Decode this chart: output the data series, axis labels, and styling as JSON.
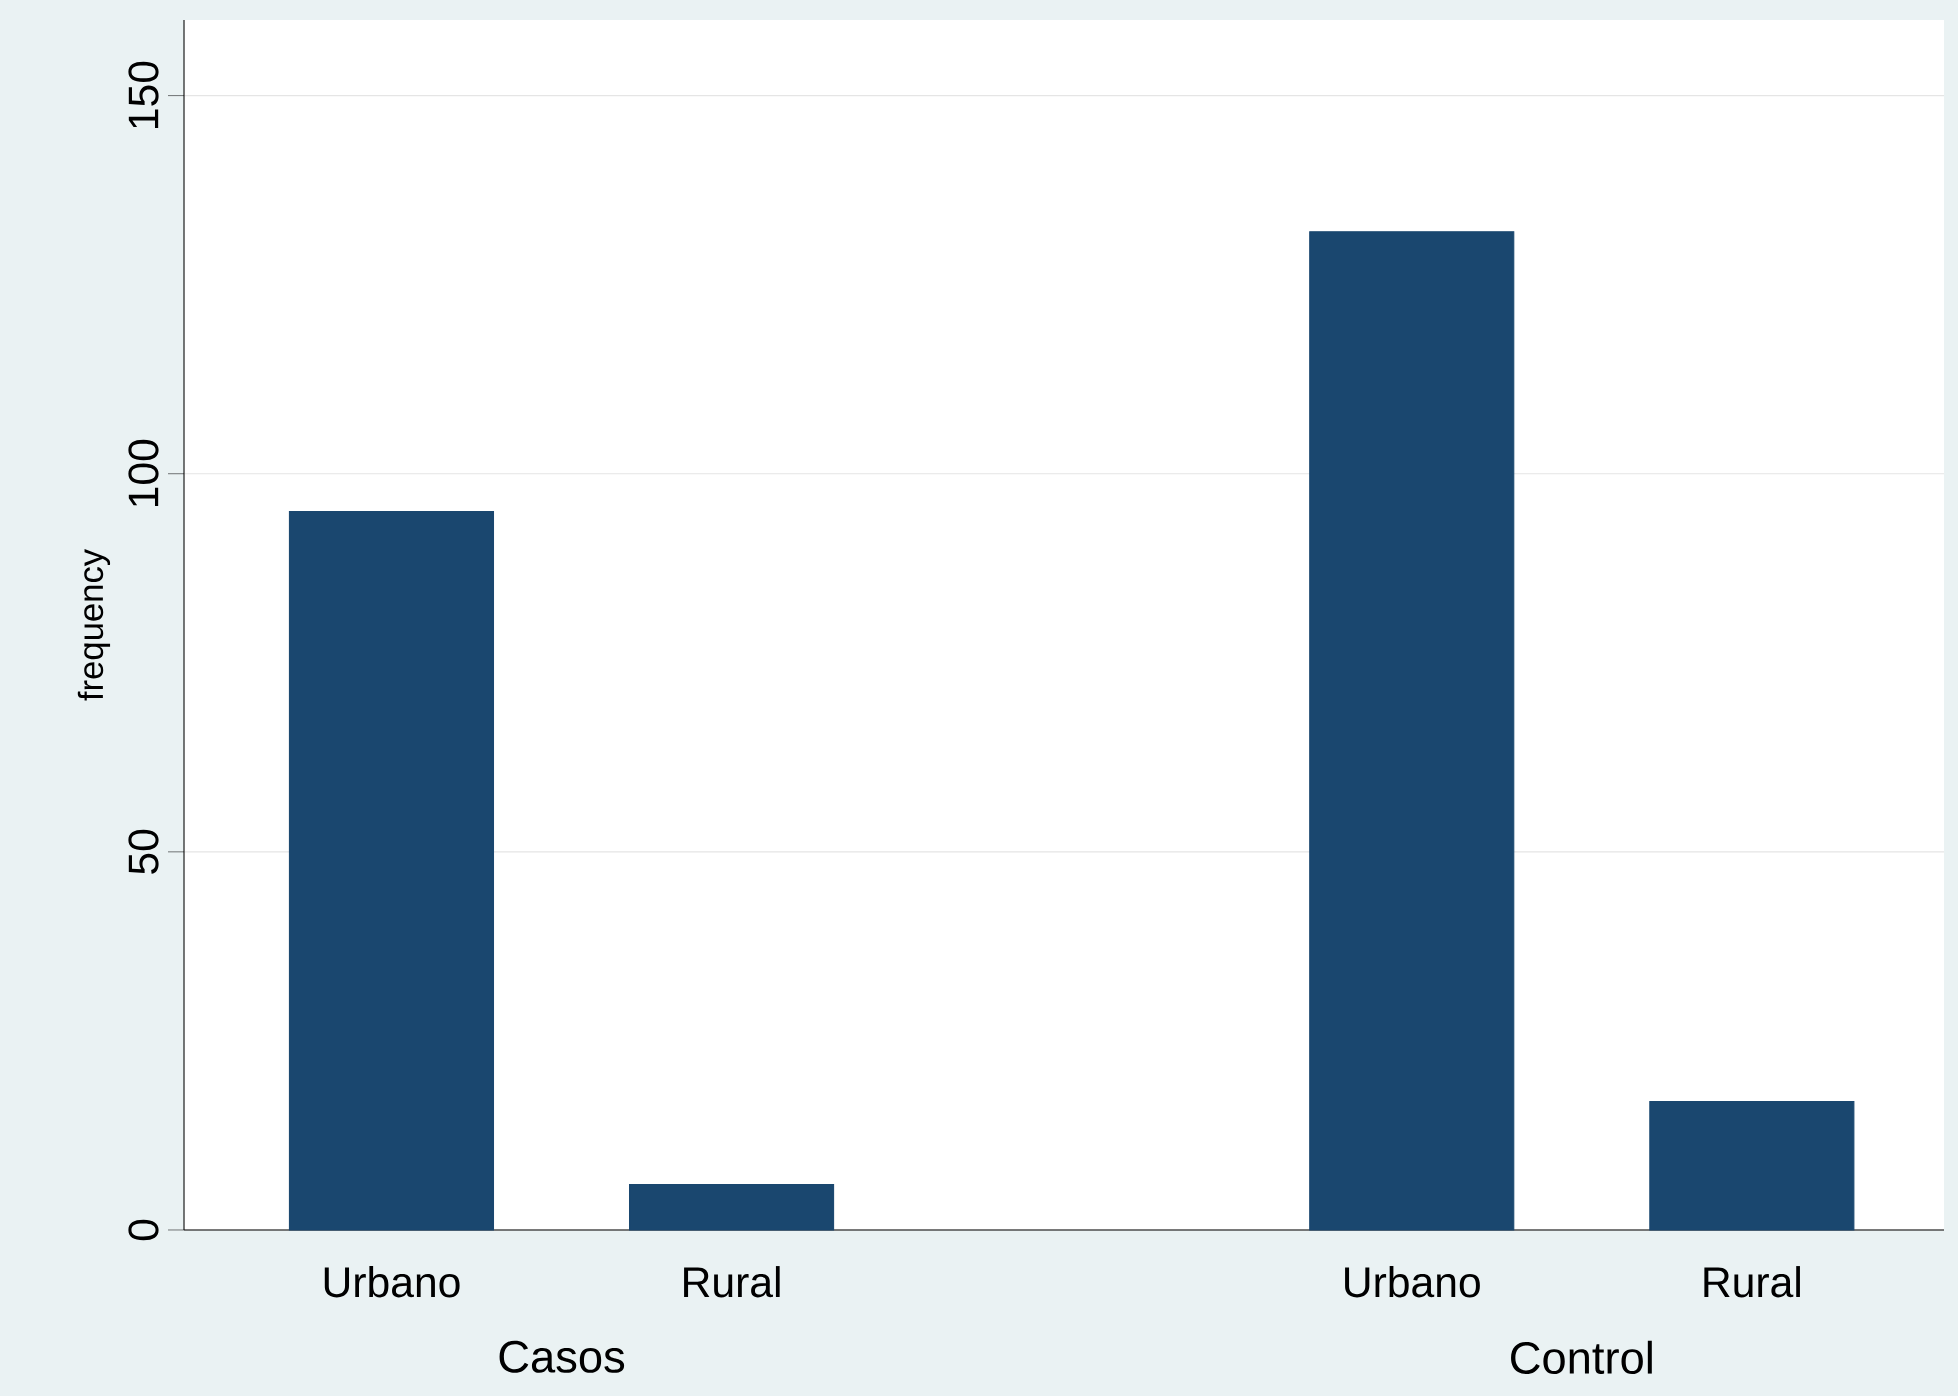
{
  "chart_data": {
    "type": "bar",
    "ylabel": "frequency",
    "categories": [
      "Urbano",
      "Rural",
      null,
      "Urbano",
      "Rural"
    ],
    "values": [
      95,
      6,
      null,
      132,
      17
    ],
    "color": "#1a476f",
    "ylim": [
      0,
      160
    ],
    "yticks": [
      0,
      50,
      100,
      150
    ],
    "grid": "y",
    "annotations": [
      "Casos",
      "Control"
    ]
  }
}
